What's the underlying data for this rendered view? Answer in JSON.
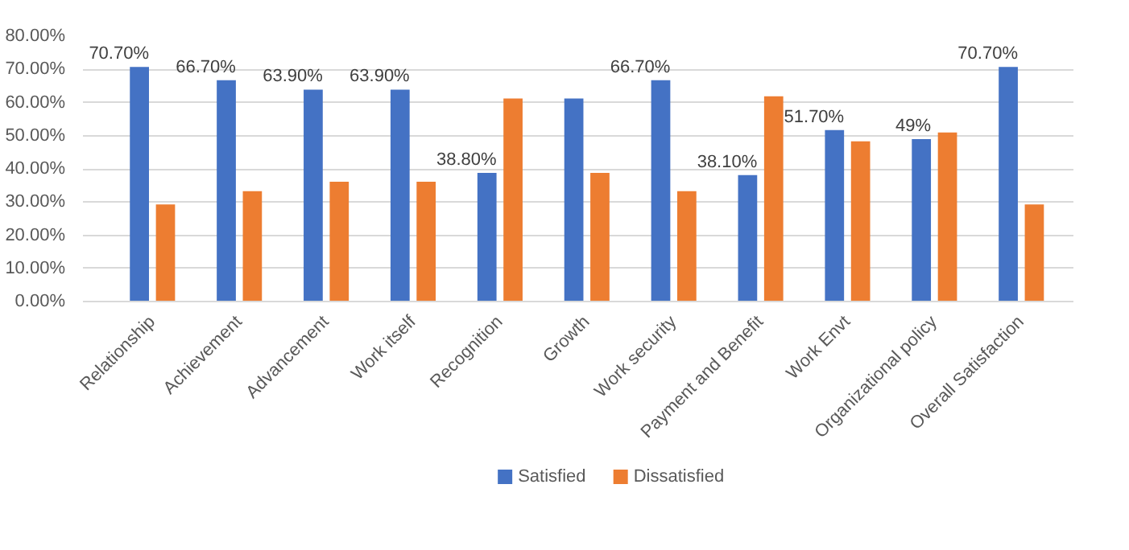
{
  "chart_data": {
    "type": "bar",
    "categories": [
      "Relationship",
      "Achievement",
      "Advancement",
      "Work itself",
      "Recognition",
      "Growth",
      "Work security",
      "Payment and Benefit",
      "Work Envt",
      "Organizational policy",
      "Overall Satisfaction"
    ],
    "series": [
      {
        "name": "Satisfied",
        "color": "#4472c4",
        "values": [
          70.7,
          66.7,
          63.9,
          63.9,
          38.8,
          61.2,
          66.7,
          38.1,
          51.7,
          49,
          70.7
        ],
        "value_labels": [
          "70.70%",
          "66.70%",
          "63.90%",
          "63.90%",
          "38.80%",
          null,
          "66.70%",
          "38.10%",
          "51.70%",
          "49%",
          "70.70%"
        ]
      },
      {
        "name": "Dissatisfied",
        "color": "#ed7d31",
        "values": [
          29.3,
          33.3,
          36.1,
          36.1,
          61.2,
          38.8,
          33.3,
          61.9,
          48.3,
          51,
          29.3
        ]
      }
    ],
    "ylim": [
      0,
      80
    ],
    "yticks": [
      {
        "value": 0,
        "label": "0.00%"
      },
      {
        "value": 10,
        "label": "10.00%"
      },
      {
        "value": 20,
        "label": "20.00%"
      },
      {
        "value": 30,
        "label": "30.00%"
      },
      {
        "value": 40,
        "label": "40.00%"
      },
      {
        "value": 50,
        "label": "50.00%"
      },
      {
        "value": 60,
        "label": "60.00%"
      },
      {
        "value": 70,
        "label": "70.00%"
      },
      {
        "value": 80,
        "label": "80.00%"
      }
    ],
    "grid": "y",
    "legend": "bottom"
  }
}
